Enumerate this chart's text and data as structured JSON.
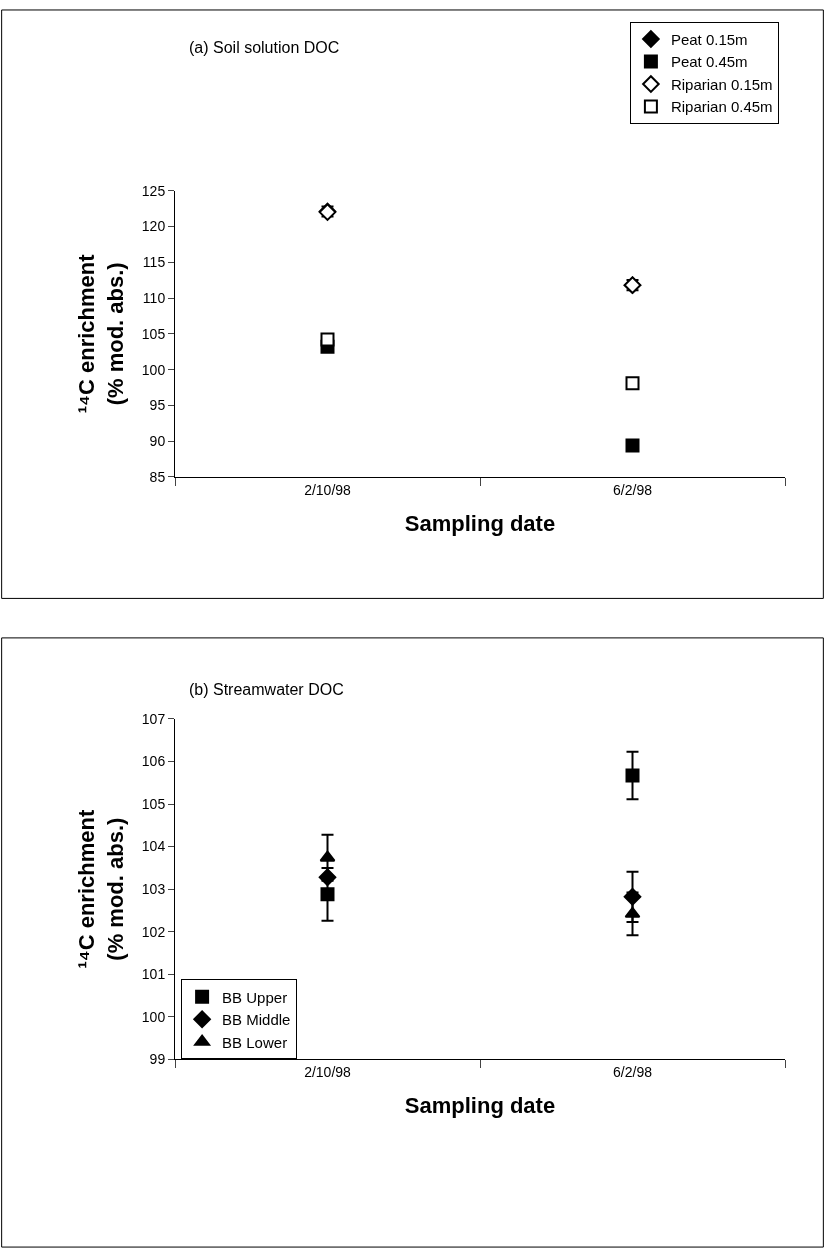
{
  "chart_data": [
    {
      "type": "scatter",
      "title": "(a) Soil solution DOC",
      "xlabel": "Sampling date",
      "ylabel": "¹⁴C enrichment\n(% mod. abs.)",
      "categories": [
        "2/10/98",
        "6/2/98"
      ],
      "ylim": [
        85,
        125
      ],
      "yticks": [
        85,
        90,
        95,
        100,
        105,
        110,
        115,
        120,
        125
      ],
      "legend": "top right",
      "series": [
        {
          "name": "Peat 0.15m",
          "color": "#000000",
          "marker": "diamond",
          "values": [
            122.1,
            111.8
          ],
          "errors": [
            0.7,
            0.7
          ]
        },
        {
          "name": "Peat 0.45m",
          "color": "#000000",
          "marker": "square",
          "values": [
            103.2,
            89.4
          ]
        },
        {
          "name": "Riparian 0.15m",
          "color": "#ffffff",
          "marker": "diamond",
          "values": [
            122.0,
            111.8
          ]
        },
        {
          "name": "Riparian 0.45m",
          "color": "#ffffff",
          "marker": "square",
          "values": [
            104.2,
            98.1
          ]
        }
      ]
    },
    {
      "type": "scatter",
      "title": "(b) Streamwater DOC",
      "xlabel": "Sampling date",
      "ylabel": "¹⁴C enrichment\n(% mod. abs.)",
      "categories": [
        "2/10/98",
        "6/2/98"
      ],
      "ylim": [
        99,
        107
      ],
      "yticks": [
        99,
        100,
        101,
        102,
        103,
        104,
        105,
        106,
        107
      ],
      "legend": "bottom left",
      "series": [
        {
          "name": "BB Upper",
          "color": "#000000",
          "marker": "square",
          "values": [
            102.88,
            105.67
          ],
          "errors": [
            0.62,
            0.56
          ]
        },
        {
          "name": "BB Middle",
          "color": "#000000",
          "marker": "diamond",
          "values": [
            103.28,
            102.82
          ],
          "errors": [
            null,
            0.59
          ]
        },
        {
          "name": "BB Lower",
          "color": "#000000",
          "marker": "triangle",
          "values": [
            103.74,
            102.42
          ],
          "errors": [
            0.54,
            0.5
          ]
        }
      ]
    }
  ]
}
